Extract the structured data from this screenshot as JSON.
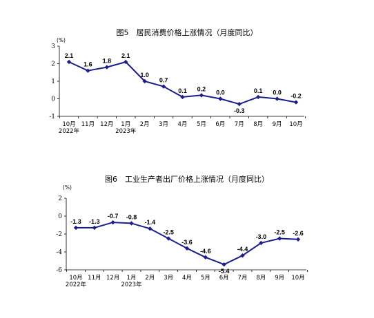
{
  "chart_data": [
    {
      "type": "line",
      "title": "图5　居民消费价格上涨情况（月度同比）",
      "unit": "(%)",
      "categories": [
        "10月",
        "11月",
        "12月",
        "1月",
        "2月",
        "3月",
        "4月",
        "5月",
        "6月",
        "7月",
        "8月",
        "9月",
        "10月"
      ],
      "year_labels": [
        "2022年",
        "2023年"
      ],
      "year_label_index": [
        0,
        3
      ],
      "values": [
        2.1,
        1.6,
        1.8,
        2.1,
        1.0,
        0.7,
        0.1,
        0.2,
        0.0,
        -0.3,
        0.1,
        0.0,
        -0.2
      ],
      "value_labels": [
        "2.1",
        "1.6",
        "1.8",
        "2.1",
        "1.0",
        "0.7",
        "0.1",
        "0.2",
        "0.0",
        "-0.3",
        "0.1",
        "0.0",
        "-0.2"
      ],
      "yticks": [
        3,
        2,
        1,
        0,
        -1
      ],
      "ylim": [
        -1,
        3
      ],
      "line_color": "#1a1f8c"
    },
    {
      "type": "line",
      "title": "图6　工业生产者出厂价格上涨情况（月度同比）",
      "unit": "(%)",
      "categories": [
        "10月",
        "11月",
        "12月",
        "1月",
        "2月",
        "3月",
        "4月",
        "5月",
        "6月",
        "7月",
        "8月",
        "9月",
        "10月"
      ],
      "year_labels": [
        "2022年",
        "2023年"
      ],
      "year_label_index": [
        0,
        3
      ],
      "values": [
        -1.3,
        -1.3,
        -0.7,
        -0.8,
        -1.4,
        -2.5,
        -3.6,
        -4.6,
        -5.4,
        -4.4,
        -3.0,
        -2.5,
        -2.6
      ],
      "value_labels": [
        "-1.3",
        "-1.3",
        "-0.7",
        "-0.8",
        "-1.4",
        "-2.5",
        "-3.6",
        "-4.6",
        "-5.4",
        "-4.4",
        "-3.0",
        "-2.5",
        "-2.6"
      ],
      "yticks": [
        2,
        0,
        -2,
        -4,
        -6
      ],
      "ylim": [
        -6,
        2
      ],
      "line_color": "#1a1f8c"
    }
  ]
}
